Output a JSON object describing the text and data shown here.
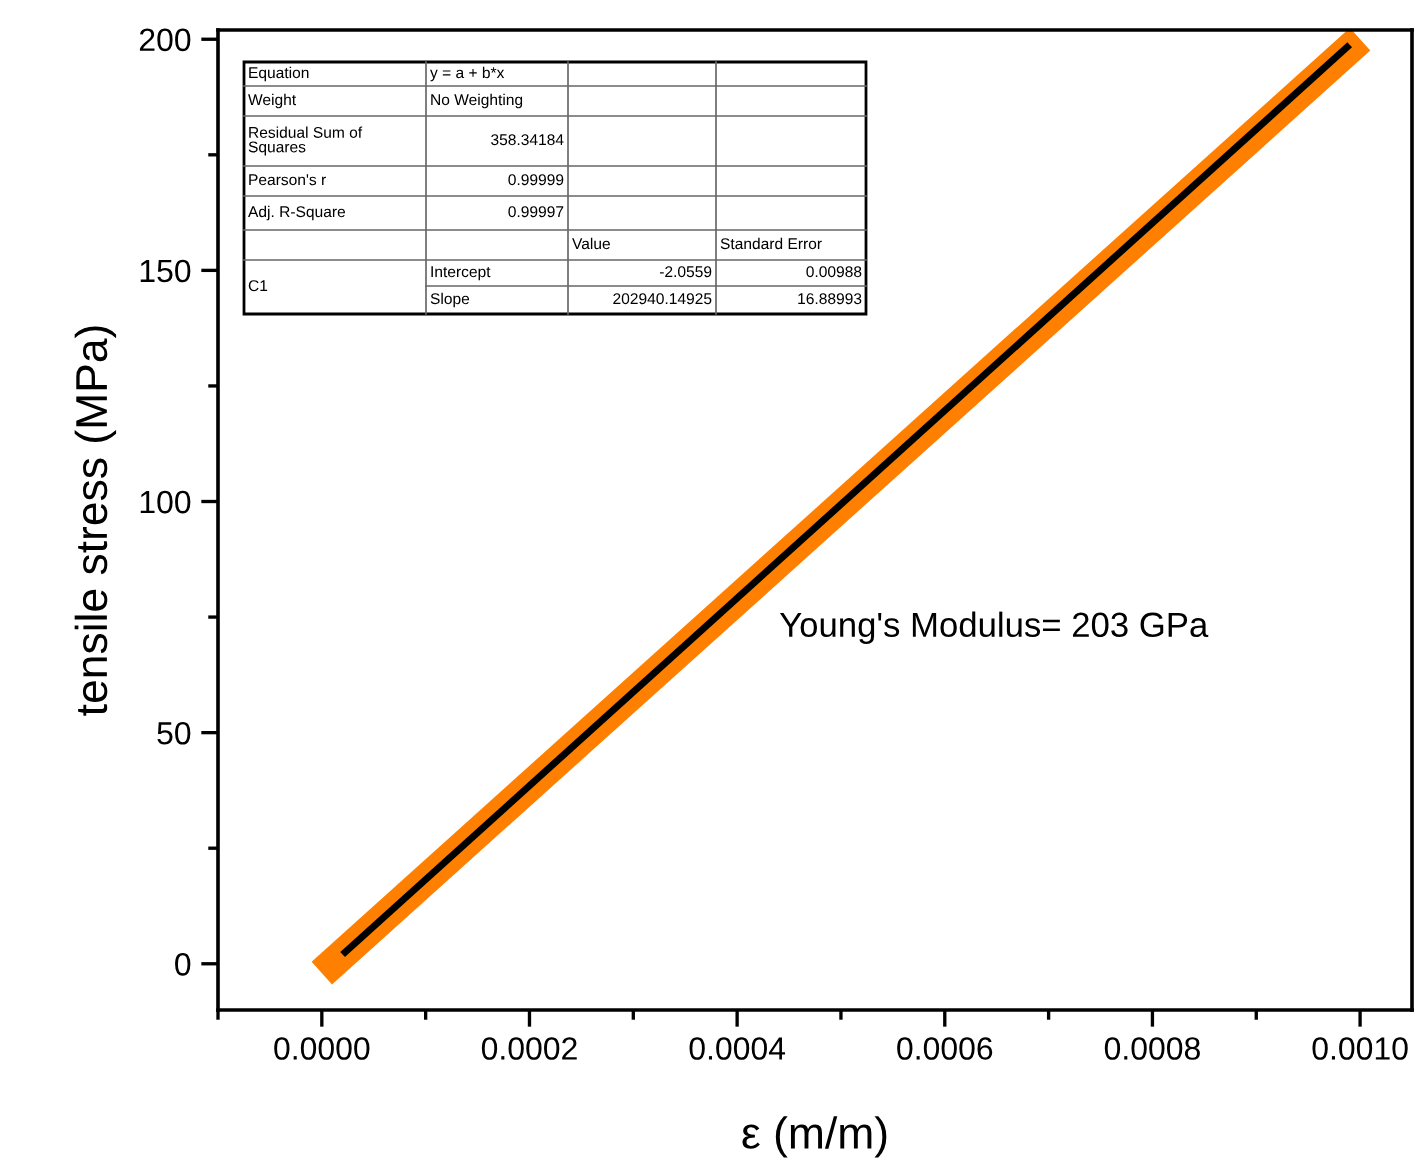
{
  "chart_data": {
    "type": "line",
    "xlabel": "ε (m/m)",
    "ylabel": "tensile stress (MPa)",
    "series": [
      {
        "color": "#ff8000",
        "x": [
          0.0,
          0.001
        ],
        "values": [
          -2,
          200
        ]
      },
      {
        "color": "#000000",
        "x": [
          2e-05,
          0.00099
        ],
        "values": [
          2.0,
          198.8
        ]
      }
    ],
    "xlim": [
      -0.0001,
      0.00105
    ],
    "ylim": [
      -10,
      202
    ],
    "xticks": [
      {
        "value": 0.0,
        "label": "0.0000"
      },
      {
        "value": 0.0002,
        "label": "0.0002"
      },
      {
        "value": 0.0004,
        "label": "0.0004"
      },
      {
        "value": 0.0006,
        "label": "0.0006"
      },
      {
        "value": 0.0008,
        "label": "0.0008"
      },
      {
        "value": 0.001,
        "label": "0.0010"
      }
    ],
    "yticks": [
      0,
      50,
      100,
      150,
      200
    ],
    "grid": false,
    "marker": "none",
    "line_style": "solid",
    "annotations": [
      "Young's Modulus= 203 GPa",
      "Equation",
      "y = a + b*x",
      "Weight",
      "No Weighting",
      "Residual Sum of\nSquares",
      "358.34184",
      "Pearson's r",
      "0.99999",
      "Adj. R-Square",
      "0.99997",
      "Value",
      "Standard Error",
      "C1",
      "Intercept",
      "-2.0559",
      "0.00988",
      "Slope",
      "202940.14925",
      "16.88993"
    ]
  }
}
